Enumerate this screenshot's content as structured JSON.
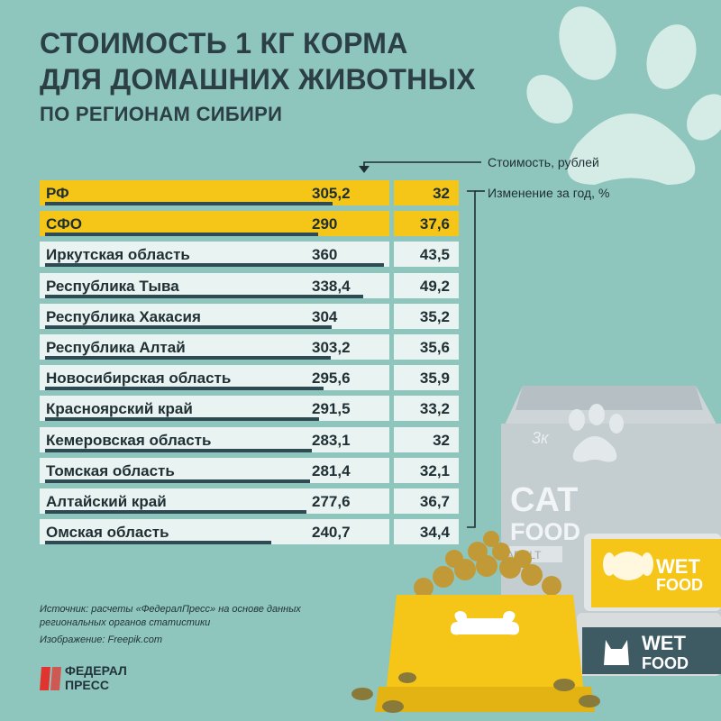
{
  "title": {
    "line1": "СТОИМОСТЬ 1 КГ КОРМА",
    "line2": "ДЛЯ ДОМАШНИХ ЖИВОТНЫХ",
    "line3": "ПО РЕГИОНАМ СИБИРИ"
  },
  "legend": {
    "cost": "Стоимость, рублей",
    "change": "Изменение за год, %"
  },
  "chart_data": {
    "type": "bar",
    "title": "СТОИМОСТЬ 1 КГ КОРМА ДЛЯ ДОМАШНИХ ЖИВОТНЫХ ПО РЕГИОНАМ СИБИРИ",
    "categories": [
      "РФ",
      "СФО",
      "Иркутская область",
      "Республика Тыва",
      "Республика Хакасия",
      "Республика Алтай",
      "Новосибирская область",
      "Красноярский край",
      "Кемеровская область",
      "Томская область",
      "Алтайский край",
      "Омская область"
    ],
    "cost_labels": [
      "305,2",
      "290",
      "360",
      "338,4",
      "304",
      "303,2",
      "295,6",
      "291,5",
      "283,1",
      "281,4",
      "277,6",
      "240,7"
    ],
    "change_labels": [
      "32",
      "37,6",
      "43,5",
      "49,2",
      "35,2",
      "35,6",
      "35,9",
      "33,2",
      "32",
      "32,1",
      "36,7",
      "34,4"
    ],
    "series": [
      {
        "name": "Стоимость, рублей",
        "values": [
          305.2,
          290,
          360,
          338.4,
          304,
          303.2,
          295.6,
          291.5,
          283.1,
          281.4,
          277.6,
          240.7
        ]
      },
      {
        "name": "Изменение за год, %",
        "values": [
          32,
          37.6,
          43.5,
          49.2,
          35.2,
          35.6,
          35.9,
          33.2,
          32,
          32.1,
          36.7,
          34.4
        ]
      }
    ],
    "highlighted": [
      "РФ",
      "СФО"
    ],
    "xlim": [
      0,
      360
    ],
    "grid": false
  },
  "colors": {
    "background": "#8ec5bd",
    "highlight": "#f5c518",
    "row": "#e9f4f2",
    "bar": "#2e4a52",
    "text": "#1f2f33"
  },
  "footer": {
    "source": "Источник: расчеты «ФедералПресс» на основе данных региональных органов статистики",
    "image": "Изображение: Freepik.com",
    "logo_line1": "ФЕДЕРАЛ",
    "logo_line2": "ПРЕСС"
  },
  "illustration": {
    "bag_brand": "3к",
    "bag_line1": "CAT",
    "bag_line2": "FOOD",
    "bag_tag": "ADULT",
    "can1_line1": "WET",
    "can1_line2": "FOOD",
    "can2_line1": "WET",
    "can2_line2": "FOOD"
  }
}
